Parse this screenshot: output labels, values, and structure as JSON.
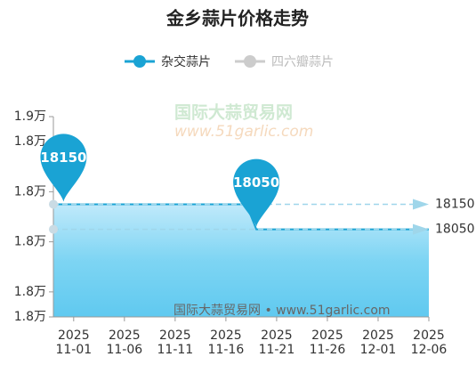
{
  "chart_data": {
    "type": "line",
    "title": "金乡蒜片价格走势",
    "x": [
      "2025-10-30",
      "2025-11-18",
      "2025-11-19",
      "2025-12-06"
    ],
    "series": [
      {
        "name": "杂交蒜片",
        "color": "#1aa3d4",
        "selected": true,
        "values": [
          18150,
          18150,
          18050,
          18050
        ]
      },
      {
        "name": "四六瓣蒜片",
        "color": "#cccccc",
        "selected": false,
        "values": [
          null,
          null,
          null,
          null
        ]
      }
    ],
    "xlim": [
      "2025-10-30",
      "2025-12-06"
    ],
    "xticks": [
      {
        "value": "2025-11-01",
        "label": "2025\n11-01"
      },
      {
        "value": "2025-11-06",
        "label": "2025\n11-06"
      },
      {
        "value": "2025-11-11",
        "label": "2025\n11-11"
      },
      {
        "value": "2025-11-16",
        "label": "2025\n11-16"
      },
      {
        "value": "2025-11-21",
        "label": "2025\n11-21"
      },
      {
        "value": "2025-11-26",
        "label": "2025\n11-26"
      },
      {
        "value": "2025-12-01",
        "label": "2025\n12-01"
      },
      {
        "value": "2025-12-06",
        "label": "2025\n12-06"
      }
    ],
    "ylim": [
      17700,
      18500
    ],
    "yticks": [
      {
        "value": 17700,
        "label": "1.8万"
      },
      {
        "value": 17800,
        "label": "1.8万"
      },
      {
        "value": 18000,
        "label": "1.8万"
      },
      {
        "value": 18200,
        "label": "1.8万"
      },
      {
        "value": 18400,
        "label": "1.8万"
      },
      {
        "value": 18500,
        "label": "1.9万"
      }
    ],
    "mark_points": [
      {
        "x": "2025-10-31",
        "value": 18150
      },
      {
        "x": "2025-11-19",
        "value": 18050
      }
    ],
    "mark_lines": [
      18150,
      18050
    ],
    "watermark": {
      "name": "国际大蒜贸易网",
      "url": "www.51garlic.com",
      "footer": "国际大蒜贸易网 • www.51garlic.com"
    }
  }
}
